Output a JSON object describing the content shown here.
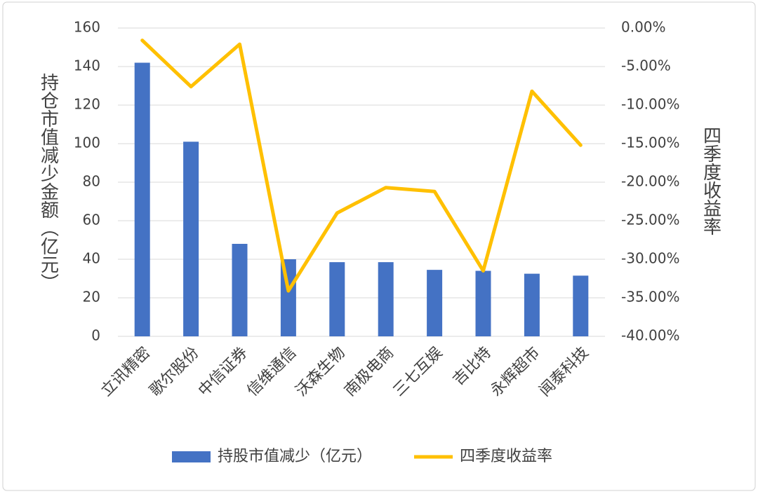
{
  "chart_data": {
    "type": "bar-line",
    "categories": [
      "立讯精密",
      "歌尔股份",
      "中信证券",
      "信维通信",
      "沃森生物",
      "南极电商",
      "三七互娱",
      "吉比特",
      "永辉超市",
      "闻泰科技"
    ],
    "series": [
      {
        "name": "持股市值减少（亿元）",
        "type": "bar",
        "color": "#4472c4",
        "values": [
          142,
          101,
          48,
          40,
          38.5,
          38.5,
          34.5,
          34,
          32.5,
          31.5
        ]
      },
      {
        "name": "四季度收益率",
        "type": "line",
        "axis": "y2",
        "color": "#ffc000",
        "values": [
          -1.6,
          -7.6,
          -2.1,
          -34.1,
          -24.0,
          -20.7,
          -21.2,
          -31.5,
          -8.2,
          -15.2
        ]
      }
    ],
    "y_label": "持仓市值减少金额（亿元）",
    "y2_label": "四季度收益率",
    "ylim": [
      0,
      160
    ],
    "yticks": [
      0,
      20,
      40,
      60,
      80,
      100,
      120,
      140,
      160
    ],
    "y2lim": [
      -40,
      0
    ],
    "y2ticks": [
      {
        "value": 0,
        "label": "0.00%"
      },
      {
        "value": -5,
        "label": "-5.00%"
      },
      {
        "value": -10,
        "label": "-10.00%"
      },
      {
        "value": -15,
        "label": "-15.00%"
      },
      {
        "value": -20,
        "label": "-20.00%"
      },
      {
        "value": -25,
        "label": "-25.00%"
      },
      {
        "value": -30,
        "label": "-30.00%"
      },
      {
        "value": -35,
        "label": "-35.00%"
      },
      {
        "value": -40,
        "label": "-40.00%"
      }
    ],
    "grid": true,
    "legend": "bottom"
  }
}
